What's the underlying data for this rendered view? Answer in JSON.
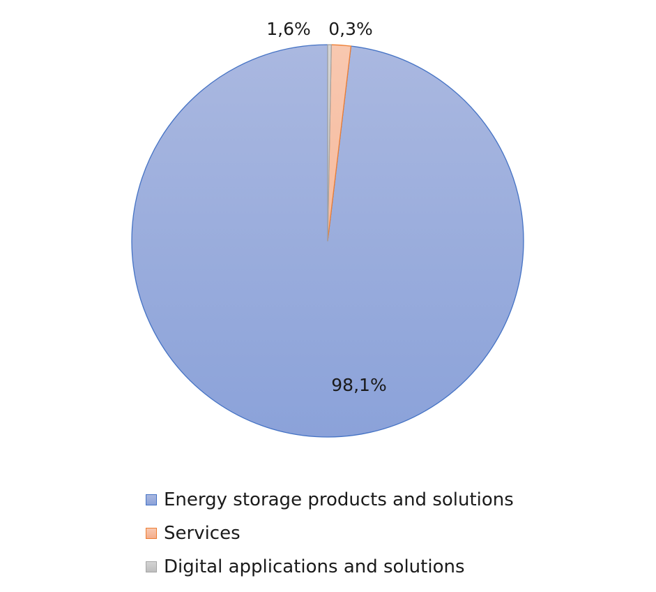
{
  "chart_data": {
    "type": "pie",
    "title": "",
    "categories": [
      "Energy storage products and solutions",
      "Services",
      "Digital applications and solutions"
    ],
    "values": [
      98.1,
      1.6,
      0.3
    ],
    "labels": [
      "98,1%",
      "1,6%",
      "0,3%"
    ],
    "unit": "%",
    "start_angle_deg": 0,
    "direction": "counterclockwise",
    "legend_position": "bottom",
    "colors": {
      "fills_top": [
        "#aab8e0",
        "#f8c8b0",
        "#d4d4d4"
      ],
      "fills_bottom": [
        "#8ba2d9",
        "#f4ad8c",
        "#bebebe"
      ],
      "strokes": [
        "#4472c4",
        "#ed7d31",
        "#a5a5a5"
      ]
    }
  }
}
